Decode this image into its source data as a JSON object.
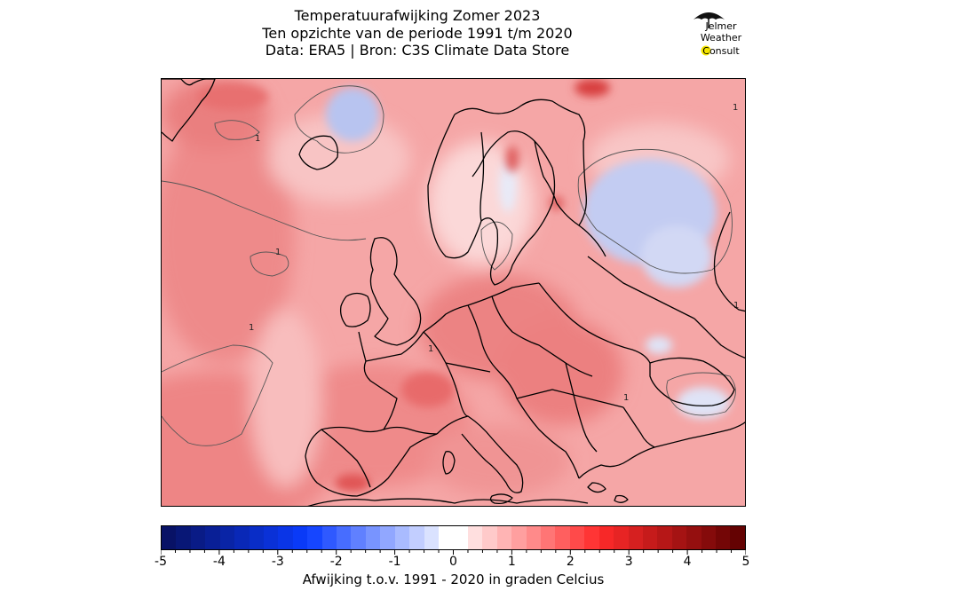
{
  "header": {
    "title_lines": [
      "Temperatuurafwijking Zomer 2023",
      "Ten opzichte van de periode 1991 t/m 2020",
      "Data: ERA5 | Bron: C3S Climate Data Store"
    ]
  },
  "logo": {
    "lines": [
      "Jelmer",
      "Weather",
      "Consult"
    ],
    "icon": "umbrella-sun-icon",
    "colors": {
      "umbrella": "#111111",
      "sun": "#f5e600"
    }
  },
  "map": {
    "region": "Europe",
    "contour_label": "1",
    "colors": {
      "land_border": "#000000",
      "contour_line": "#555555"
    }
  },
  "colorbar": {
    "min": -5,
    "max": 5,
    "step": 0.25,
    "tick_labels": [
      "-5",
      "-4",
      "-3",
      "-2",
      "-1",
      "0",
      "1",
      "2",
      "3",
      "4",
      "5"
    ],
    "label": "Afwijking t.o.v. 1991 - 2020 in graden Celcius",
    "colors": {
      "cold_end": "#08105e",
      "cold_mid": "#0a3cff",
      "neutral": "#ffffff",
      "warm_mid": "#ff2a2a",
      "warm_end": "#5c0000"
    }
  }
}
